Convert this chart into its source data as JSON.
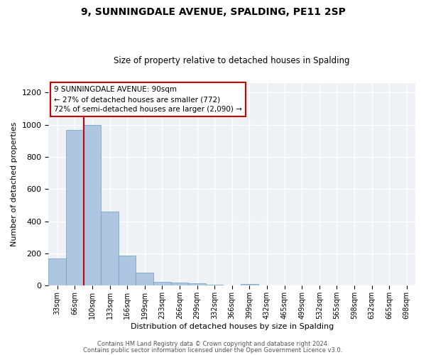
{
  "title": "9, SUNNINGDALE AVENUE, SPALDING, PE11 2SP",
  "subtitle": "Size of property relative to detached houses in Spalding",
  "xlabel": "Distribution of detached houses by size in Spalding",
  "ylabel": "Number of detached properties",
  "bar_labels": [
    "33sqm",
    "66sqm",
    "100sqm",
    "133sqm",
    "166sqm",
    "199sqm",
    "233sqm",
    "266sqm",
    "299sqm",
    "332sqm",
    "366sqm",
    "399sqm",
    "432sqm",
    "465sqm",
    "499sqm",
    "532sqm",
    "565sqm",
    "598sqm",
    "632sqm",
    "665sqm",
    "698sqm"
  ],
  "bar_values": [
    170,
    970,
    1000,
    460,
    185,
    80,
    25,
    20,
    15,
    8,
    0,
    12,
    0,
    0,
    0,
    0,
    0,
    0,
    0,
    0,
    0
  ],
  "bar_color": "#aec6df",
  "bar_edge_color": "#6a9fc0",
  "ylim": [
    0,
    1260
  ],
  "yticks": [
    0,
    200,
    400,
    600,
    800,
    1000,
    1200
  ],
  "annotation_box_color": "#cc0000",
  "footer1": "Contains HM Land Registry data © Crown copyright and database right 2024.",
  "footer2": "Contains public sector information licensed under the Open Government Licence v3.0.",
  "bg_color": "#eef2f7"
}
